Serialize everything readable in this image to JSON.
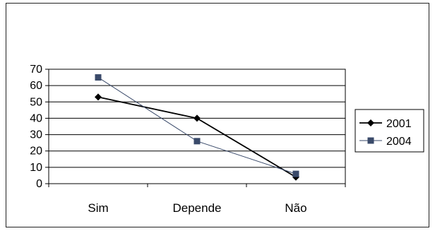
{
  "chart_data": {
    "type": "line",
    "title": "",
    "xlabel": "",
    "ylabel": "",
    "categories": [
      "Sim",
      "Depende",
      "Não"
    ],
    "ylim": [
      0,
      70
    ],
    "yticks": [
      0,
      10,
      20,
      30,
      40,
      50,
      60,
      70
    ],
    "grid": true,
    "legend_position": "right",
    "series": [
      {
        "name": "2001",
        "values": [
          53,
          40,
          4
        ],
        "color": "#000000",
        "marker": "diamond"
      },
      {
        "name": "2004",
        "values": [
          65,
          26,
          6
        ],
        "color": "#3a4a6a",
        "marker": "square"
      }
    ]
  }
}
